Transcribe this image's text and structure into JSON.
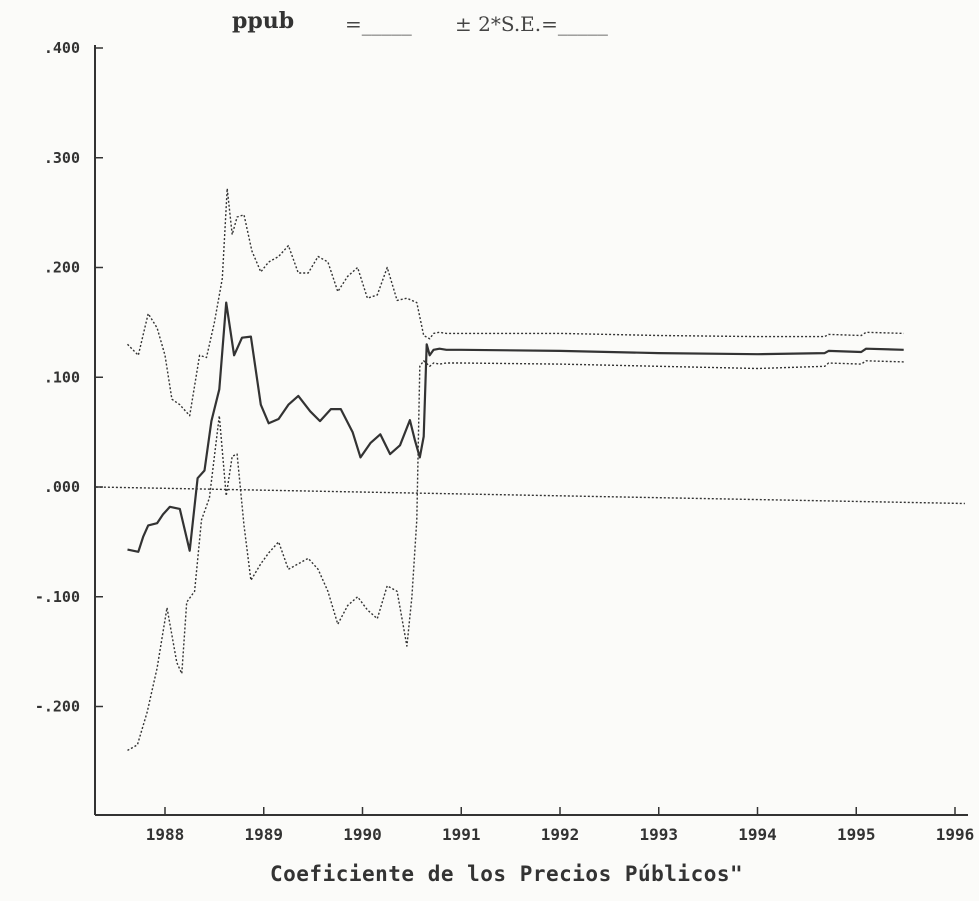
{
  "title": {
    "variable": "ppub",
    "equals_blank": "=_____",
    "se_label": "± 2*S.E.=_____"
  },
  "caption": "Coeficiente de los Precios Públicos\"",
  "colors": {
    "ink": "#333333",
    "paper": "#fbfbf9"
  },
  "chart_data": {
    "type": "line",
    "ylim": [
      -0.3,
      0.4
    ],
    "xlim": [
      1987.3,
      1996.1
    ],
    "y_ticks": [
      0.4,
      0.3,
      0.2,
      0.1,
      0.0,
      -0.1,
      -0.2
    ],
    "y_tick_labels": [
      ".400",
      ".300",
      ".200",
      ".100",
      ".000",
      "-.100",
      "-.200"
    ],
    "x_ticks": [
      1988,
      1989,
      1990,
      1991,
      1992,
      1993,
      1994,
      1995,
      1996
    ],
    "x_tick_labels": [
      "1988",
      "1989",
      "1990",
      "1991",
      "1992",
      "1993",
      "1994",
      "1995",
      "1996"
    ],
    "grid": false,
    "series": [
      {
        "role": "coefficient",
        "style": "solid",
        "x": [
          1987.62,
          1987.73,
          1987.78,
          1987.83,
          1987.92,
          1987.98,
          1988.05,
          1988.15,
          1988.25,
          1988.33,
          1988.4,
          1988.47,
          1988.55,
          1988.62,
          1988.7,
          1988.78,
          1988.87,
          1988.97,
          1989.05,
          1989.15,
          1989.25,
          1989.35,
          1989.47,
          1989.57,
          1989.68,
          1989.78,
          1989.9,
          1989.98,
          1990.08,
          1990.18,
          1990.28,
          1990.38,
          1990.48,
          1990.53,
          1990.58,
          1990.62,
          1990.65,
          1990.68,
          1990.72,
          1990.78,
          1990.85,
          1991.0,
          1992.0,
          1993.0,
          1994.0,
          1994.68,
          1994.72,
          1995.05,
          1995.1,
          1995.48
        ],
        "y": [
          -0.057,
          -0.059,
          -0.045,
          -0.035,
          -0.033,
          -0.025,
          -0.018,
          -0.02,
          -0.058,
          0.008,
          0.015,
          0.06,
          0.089,
          0.168,
          0.12,
          0.136,
          0.137,
          0.075,
          0.058,
          0.062,
          0.075,
          0.083,
          0.069,
          0.06,
          0.071,
          0.071,
          0.05,
          0.027,
          0.04,
          0.048,
          0.03,
          0.038,
          0.061,
          0.043,
          0.027,
          0.046,
          0.13,
          0.12,
          0.125,
          0.126,
          0.125,
          0.125,
          0.124,
          0.122,
          0.121,
          0.122,
          0.124,
          0.123,
          0.126,
          0.125
        ]
      },
      {
        "role": "upper band (+2 S.E.)",
        "style": "dotted",
        "x": [
          1987.62,
          1987.73,
          1987.83,
          1987.92,
          1988.0,
          1988.07,
          1988.15,
          1988.25,
          1988.35,
          1988.42,
          1988.5,
          1988.58,
          1988.63,
          1988.68,
          1988.73,
          1988.8,
          1988.88,
          1988.97,
          1989.05,
          1989.15,
          1989.25,
          1989.35,
          1989.45,
          1989.55,
          1989.65,
          1989.75,
          1989.85,
          1989.95,
          1990.05,
          1990.15,
          1990.25,
          1990.35,
          1990.45,
          1990.55,
          1990.62,
          1990.68,
          1990.72,
          1990.78,
          1990.85,
          1991.0,
          1992.0,
          1993.0,
          1994.0,
          1994.68,
          1994.72,
          1995.05,
          1995.1,
          1995.48
        ],
        "y": [
          0.13,
          0.12,
          0.158,
          0.145,
          0.12,
          0.08,
          0.075,
          0.065,
          0.12,
          0.118,
          0.15,
          0.19,
          0.272,
          0.23,
          0.246,
          0.248,
          0.215,
          0.196,
          0.205,
          0.21,
          0.22,
          0.195,
          0.195,
          0.21,
          0.205,
          0.178,
          0.192,
          0.2,
          0.172,
          0.175,
          0.2,
          0.17,
          0.172,
          0.168,
          0.138,
          0.135,
          0.14,
          0.141,
          0.14,
          0.14,
          0.14,
          0.138,
          0.137,
          0.137,
          0.139,
          0.138,
          0.141,
          0.14
        ]
      },
      {
        "role": "lower band (-2 S.E.)",
        "style": "dotted",
        "x": [
          1987.62,
          1987.72,
          1987.82,
          1987.92,
          1988.02,
          1988.12,
          1988.17,
          1988.22,
          1988.3,
          1988.37,
          1988.45,
          1988.55,
          1988.62,
          1988.68,
          1988.73,
          1988.8,
          1988.87,
          1988.97,
          1989.05,
          1989.15,
          1989.25,
          1989.35,
          1989.45,
          1989.55,
          1989.65,
          1989.75,
          1989.85,
          1989.95,
          1990.05,
          1990.15,
          1990.25,
          1990.35,
          1990.45,
          1990.5,
          1990.55,
          1990.58,
          1990.62,
          1990.68,
          1990.72,
          1990.78,
          1990.85,
          1991.0,
          1992.0,
          1993.0,
          1994.0,
          1994.68,
          1994.72,
          1995.05,
          1995.1,
          1995.48
        ],
        "y": [
          -0.24,
          -0.235,
          -0.205,
          -0.165,
          -0.11,
          -0.16,
          -0.17,
          -0.105,
          -0.095,
          -0.03,
          -0.01,
          0.065,
          -0.008,
          0.028,
          0.03,
          -0.035,
          -0.085,
          -0.07,
          -0.06,
          -0.05,
          -0.075,
          -0.07,
          -0.065,
          -0.075,
          -0.095,
          -0.125,
          -0.108,
          -0.1,
          -0.112,
          -0.12,
          -0.09,
          -0.095,
          -0.145,
          -0.1,
          -0.03,
          0.11,
          0.115,
          0.11,
          0.113,
          0.112,
          0.113,
          0.113,
          0.112,
          0.11,
          0.108,
          0.11,
          0.113,
          0.112,
          0.115,
          0.114
        ]
      },
      {
        "role": "zero reference",
        "style": "dotted",
        "x": [
          1987.3,
          1996.1
        ],
        "y": [
          0.0,
          -0.015
        ]
      }
    ]
  }
}
